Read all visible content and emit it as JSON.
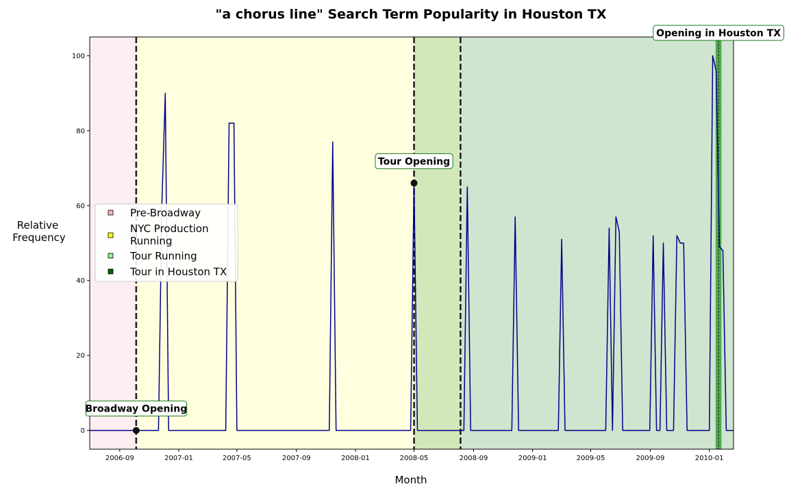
{
  "chart_data": {
    "type": "line",
    "title": "\"a chorus line\" Search Term Popularity in Houston TX",
    "xlabel": "Month",
    "ylabel_lines": [
      "Relative",
      "Frequency"
    ],
    "x_domain": [
      "2006-07-01",
      "2010-02-20"
    ],
    "ylim": [
      -5,
      105
    ],
    "yticks": [
      0,
      20,
      40,
      60,
      80,
      100
    ],
    "xticks": [
      "2006-09",
      "2007-01",
      "2007-05",
      "2007-09",
      "2008-01",
      "2008-05",
      "2008-09",
      "2009-01",
      "2009-05",
      "2009-09",
      "2010-01"
    ],
    "grid": false,
    "legend_placement": "center-left",
    "line_color": "#00008b",
    "phases": [
      {
        "label": "Pre-Broadway",
        "start": "2006-07-01",
        "end": "2006-10-05",
        "color": "#fdeef2",
        "swatch": "#f4b6b6"
      },
      {
        "label": "NYC Production\nRunning",
        "start": "2006-10-05",
        "end": "2008-05-01",
        "color": "#ffffe0",
        "swatch": "#ffff00"
      },
      {
        "label": "Tour Running",
        "start": "2008-05-01",
        "end": "2010-02-20",
        "color": "#cfe5cf",
        "swatch": "#90ee90"
      },
      {
        "label": "Tour in Houston TX",
        "start": "2010-01-14",
        "end": "2010-01-26",
        "color": "#52a852",
        "swatch": "#006400"
      }
    ],
    "overlap_region": {
      "start": "2008-05-01",
      "end": "2008-08-05",
      "color": "#d2e8bb"
    },
    "vlines": [
      "2006-10-05",
      "2008-05-01",
      "2008-08-05"
    ],
    "houston_dashed": "2010-01-20",
    "annotations": [
      {
        "text": "Broadway Opening",
        "date": "2006-10-05",
        "value": 0,
        "box_offset_y": 32
      },
      {
        "text": "Tour Opening",
        "date": "2008-05-01",
        "value": 66,
        "box_offset_y": 32
      },
      {
        "text": "Opening in Houston TX",
        "date": "2010-01-20",
        "value": 105,
        "box_offset_y": 6
      }
    ],
    "series": [
      {
        "points": [
          [
            "2006-07-01",
            0
          ],
          [
            "2006-11-20",
            0
          ],
          [
            "2006-11-27",
            60
          ],
          [
            "2006-12-04",
            90
          ],
          [
            "2006-12-11",
            0
          ],
          [
            "2007-04-08",
            0
          ],
          [
            "2007-04-15",
            82
          ],
          [
            "2007-04-25",
            82
          ],
          [
            "2007-05-01",
            0
          ],
          [
            "2007-11-08",
            0
          ],
          [
            "2007-11-15",
            77
          ],
          [
            "2007-11-22",
            0
          ],
          [
            "2008-04-24",
            0
          ],
          [
            "2008-05-01",
            66
          ],
          [
            "2008-05-08",
            0
          ],
          [
            "2008-08-12",
            0
          ],
          [
            "2008-08-19",
            65
          ],
          [
            "2008-08-26",
            0
          ],
          [
            "2008-11-19",
            0
          ],
          [
            "2008-11-26",
            57
          ],
          [
            "2008-12-03",
            0
          ],
          [
            "2009-02-23",
            0
          ],
          [
            "2009-03-02",
            51
          ],
          [
            "2009-03-09",
            0
          ],
          [
            "2009-06-01",
            0
          ],
          [
            "2009-06-08",
            54
          ],
          [
            "2009-06-15",
            0
          ],
          [
            "2009-06-22",
            57
          ],
          [
            "2009-06-29",
            53
          ],
          [
            "2009-07-06",
            0
          ],
          [
            "2009-08-31",
            0
          ],
          [
            "2009-09-07",
            52
          ],
          [
            "2009-09-14",
            0
          ],
          [
            "2009-09-21",
            0
          ],
          [
            "2009-09-28",
            50
          ],
          [
            "2009-10-05",
            0
          ],
          [
            "2009-10-19",
            0
          ],
          [
            "2009-10-26",
            52
          ],
          [
            "2009-11-02",
            50
          ],
          [
            "2009-11-09",
            50
          ],
          [
            "2009-11-16",
            0
          ],
          [
            "2010-01-01",
            0
          ],
          [
            "2010-01-08",
            100
          ],
          [
            "2010-01-15",
            96
          ],
          [
            "2010-01-22",
            49
          ],
          [
            "2010-01-29",
            48
          ],
          [
            "2010-02-05",
            0
          ],
          [
            "2010-02-20",
            0
          ]
        ]
      }
    ]
  }
}
